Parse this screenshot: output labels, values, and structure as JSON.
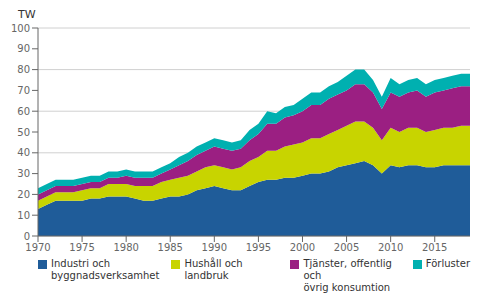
{
  "chart_data": {
    "type": "area",
    "stacked": true,
    "ylabel": "TW",
    "x": [
      1970,
      1971,
      1972,
      1973,
      1974,
      1975,
      1976,
      1977,
      1978,
      1979,
      1980,
      1981,
      1982,
      1983,
      1984,
      1985,
      1986,
      1987,
      1988,
      1989,
      1990,
      1991,
      1992,
      1993,
      1994,
      1995,
      1996,
      1997,
      1998,
      1999,
      2000,
      2001,
      2002,
      2003,
      2004,
      2005,
      2006,
      2007,
      2008,
      2009,
      2010,
      2011,
      2012,
      2013,
      2014,
      2015,
      2016,
      2017,
      2018,
      2019
    ],
    "series": [
      {
        "name": "Industri och\nbyggnadsverksamhet",
        "color": "#1f5c99",
        "values": [
          13,
          15,
          17,
          17,
          17,
          17,
          18,
          18,
          19,
          19,
          19,
          18,
          17,
          17,
          18,
          19,
          19,
          20,
          22,
          23,
          24,
          23,
          22,
          22,
          24,
          26,
          27,
          27,
          28,
          28,
          29,
          30,
          30,
          31,
          33,
          34,
          35,
          36,
          34,
          30,
          34,
          33,
          34,
          34,
          33,
          33,
          34,
          34,
          34,
          34
        ]
      },
      {
        "name": "Hushåll och landbruk",
        "color": "#c8d400",
        "values": [
          4,
          4,
          4,
          4,
          4,
          5,
          5,
          5,
          6,
          6,
          6,
          6,
          7,
          7,
          8,
          8,
          9,
          9,
          9,
          10,
          10,
          10,
          10,
          11,
          12,
          12,
          14,
          14,
          15,
          16,
          16,
          17,
          17,
          18,
          18,
          19,
          20,
          19,
          18,
          16,
          18,
          17,
          18,
          18,
          17,
          18,
          18,
          18,
          19,
          19
        ]
      },
      {
        "name": "Tjänster, offentlig och\növrig konsumtion",
        "color": "#9b1f82",
        "values": [
          3,
          3,
          3,
          3,
          3,
          3,
          3,
          3,
          3,
          3,
          4,
          4,
          4,
          4,
          4,
          5,
          6,
          7,
          8,
          8,
          9,
          9,
          9,
          9,
          10,
          11,
          13,
          13,
          14,
          14,
          15,
          16,
          16,
          17,
          17,
          17,
          18,
          18,
          17,
          15,
          17,
          17,
          17,
          18,
          17,
          18,
          18,
          19,
          19,
          19
        ]
      },
      {
        "name": "Förluster",
        "color": "#00b0b0",
        "values": [
          3,
          3,
          3,
          3,
          3,
          3,
          3,
          3,
          3,
          3,
          3,
          3,
          3,
          3,
          3,
          3,
          4,
          4,
          4,
          4,
          4,
          4,
          4,
          4,
          5,
          5,
          6,
          5,
          5,
          5,
          6,
          6,
          6,
          6,
          6,
          7,
          7,
          7,
          6,
          6,
          7,
          6,
          6,
          6,
          6,
          6,
          6,
          6,
          6,
          6
        ]
      }
    ],
    "xlim": [
      1970,
      2019
    ],
    "xticks": [
      1970,
      1975,
      1980,
      1985,
      1990,
      1995,
      2000,
      2005,
      2010,
      2015
    ],
    "ylim": [
      0,
      100
    ],
    "yticks": [
      0,
      10,
      20,
      30,
      40,
      50,
      60,
      70,
      80,
      90,
      100
    ],
    "grid": "y",
    "legend": "bottom"
  }
}
